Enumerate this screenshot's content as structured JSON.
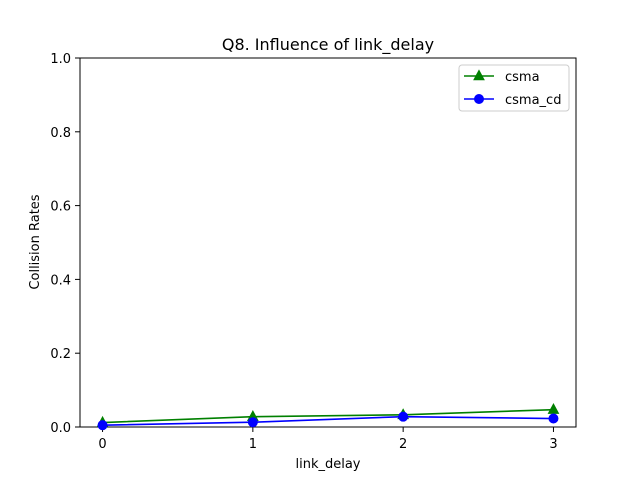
{
  "chart_data": {
    "type": "line",
    "title": "Q8. Influence of link_delay",
    "xlabel": "link_delay",
    "ylabel": "Collision Rates",
    "x": [
      0,
      1,
      2,
      3
    ],
    "xticks": [
      "0",
      "1",
      "2",
      "3"
    ],
    "yticks": [
      "0.0",
      "0.2",
      "0.4",
      "0.6",
      "0.8",
      "1.0"
    ],
    "xlim": [
      -0.15,
      3.15
    ],
    "ylim": [
      0,
      1
    ],
    "grid": false,
    "legend_position": "upper right",
    "series": [
      {
        "name": "csma",
        "color": "#008000",
        "marker": "triangle",
        "values": [
          0.012,
          0.028,
          0.033,
          0.047
        ]
      },
      {
        "name": "csma_cd",
        "color": "#0000ff",
        "marker": "circle",
        "values": [
          0.005,
          0.013,
          0.028,
          0.023
        ]
      }
    ]
  }
}
